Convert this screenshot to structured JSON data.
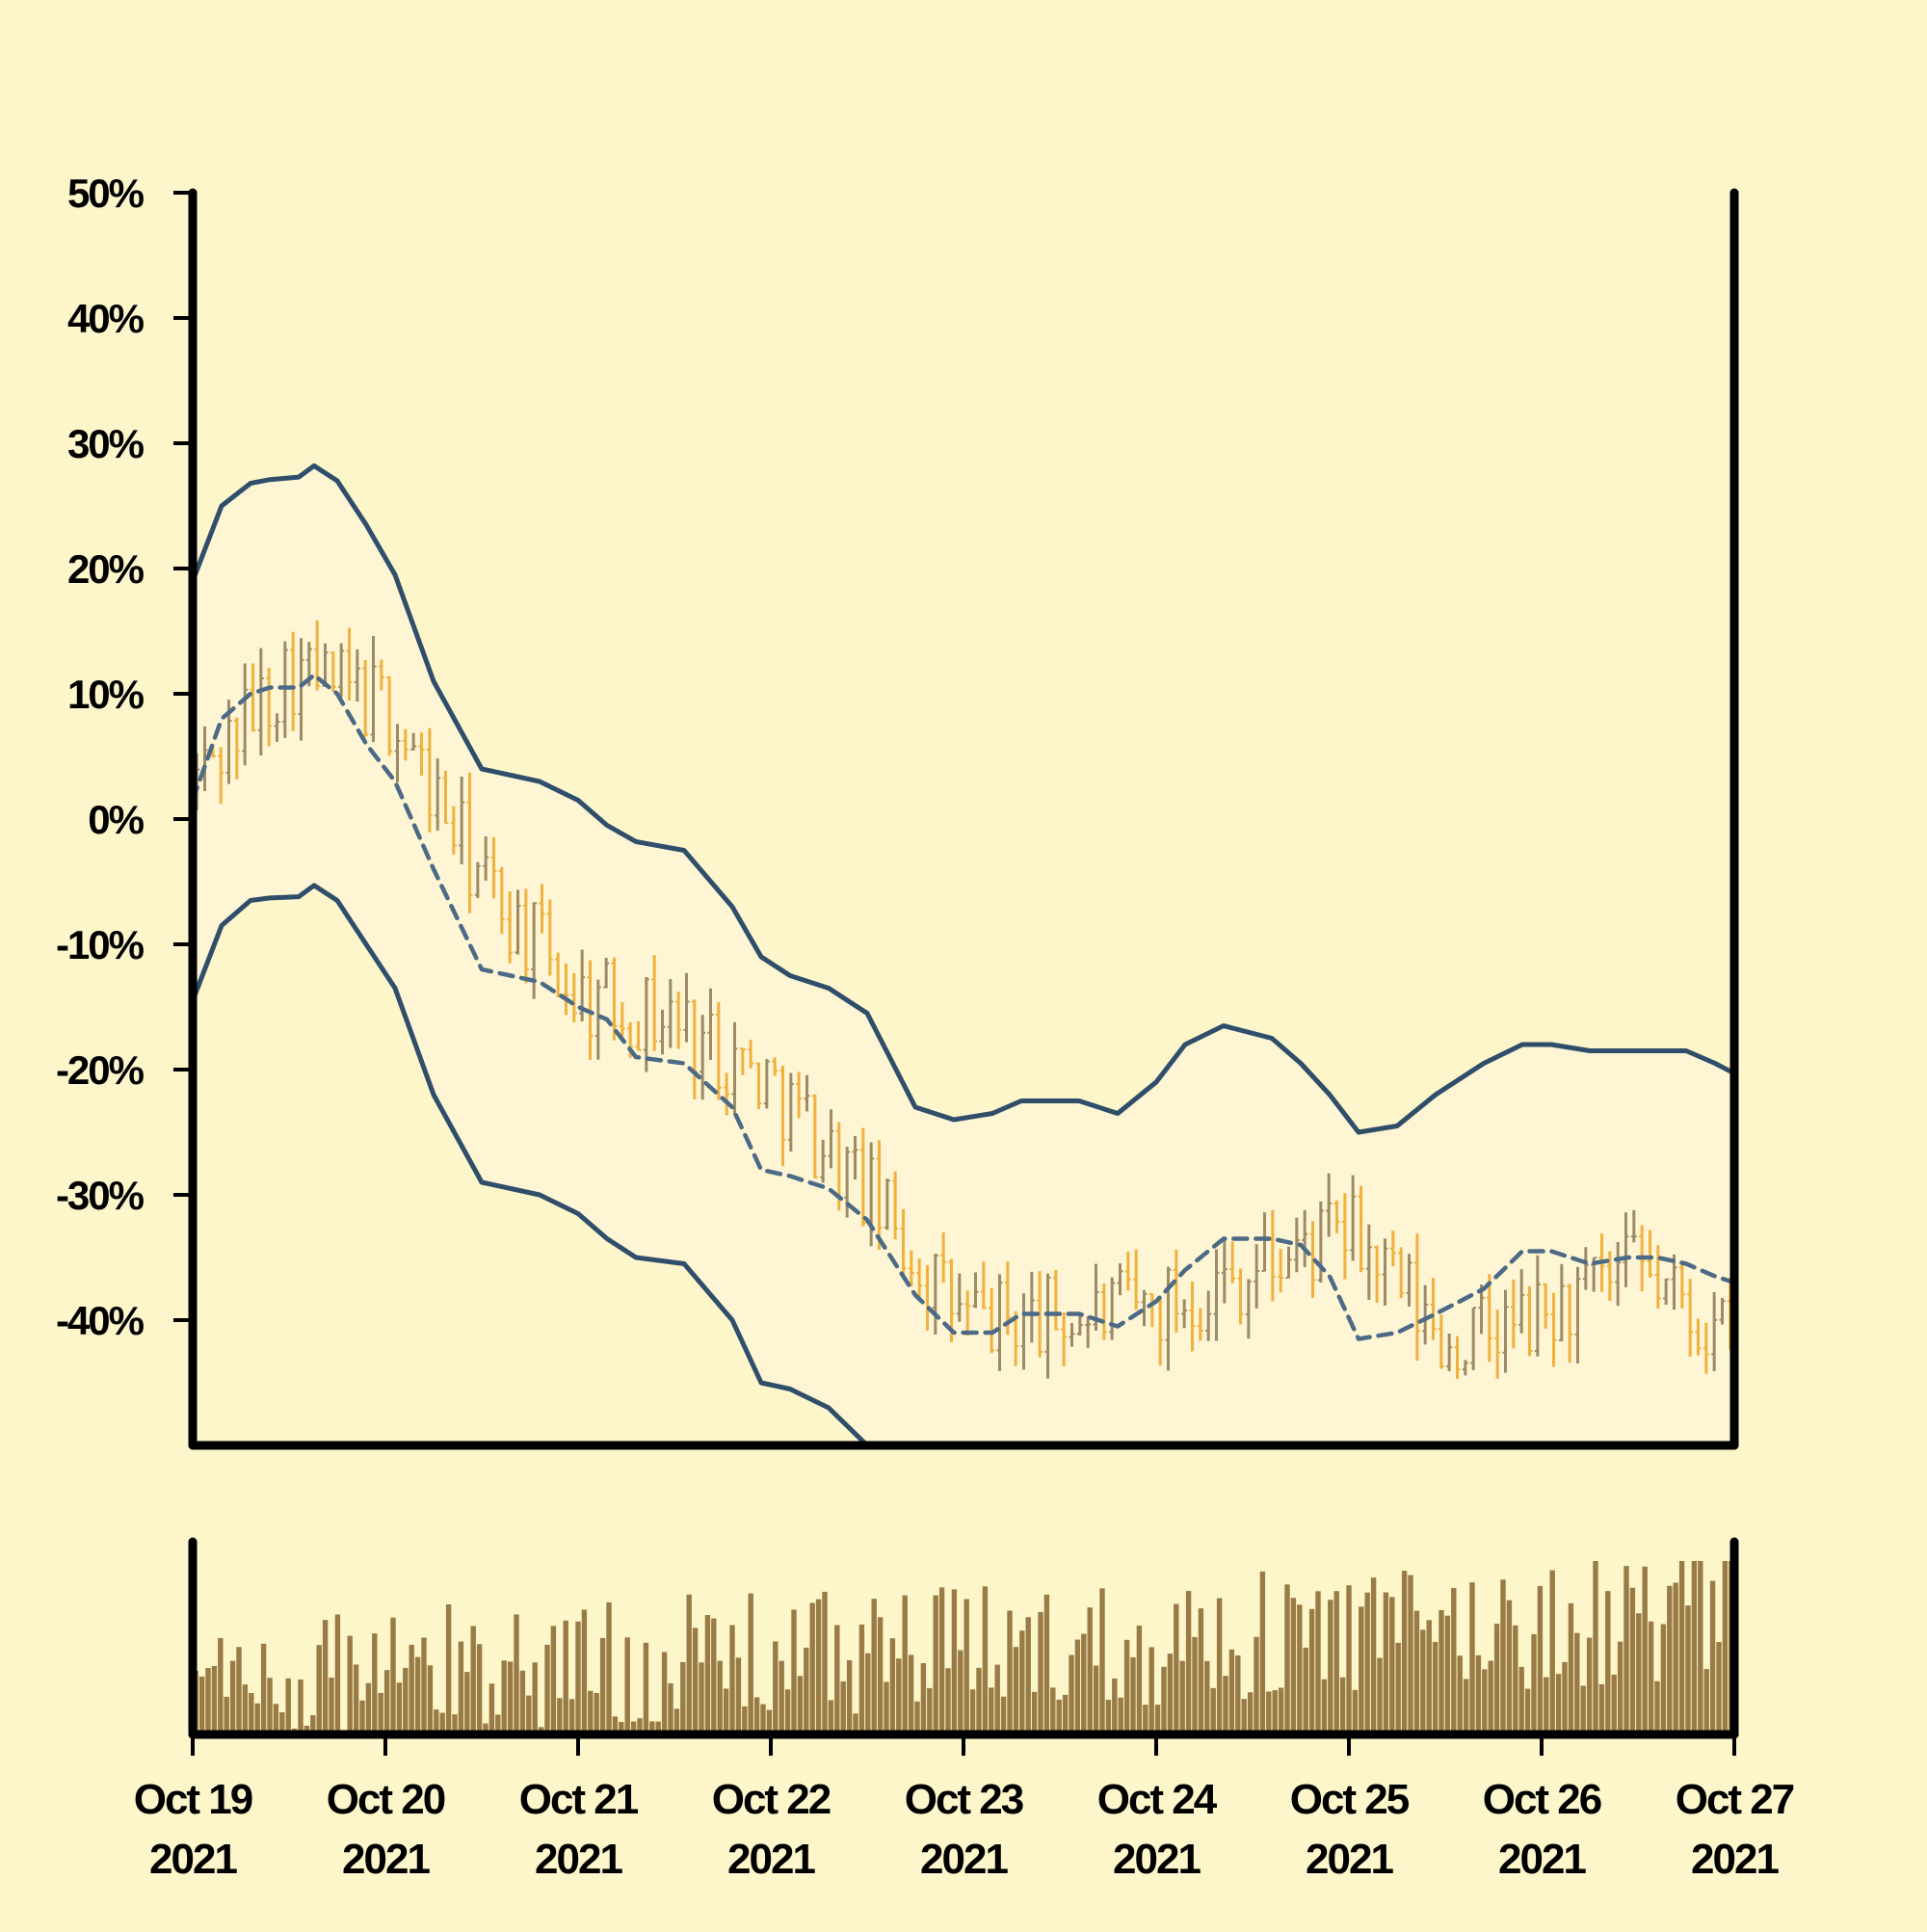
{
  "chart_data": {
    "type": "ohlc",
    "title": "",
    "xlabel": "",
    "ylabel": "",
    "x_range": [
      "2021-10-19",
      "2021-10-27"
    ],
    "ylim": [
      -50,
      50
    ],
    "y_tick_labels": [
      "50%",
      "40%",
      "30%",
      "20%",
      "10%",
      "0%",
      "-10%",
      "-20%",
      "-30%",
      "-40%"
    ],
    "y_tick_values": [
      50,
      40,
      30,
      20,
      10,
      0,
      -10,
      -20,
      -30,
      -40
    ],
    "x_tick_labels": [
      {
        "date": "2021-10-19",
        "line1": "Oct 19",
        "line2": "2021"
      },
      {
        "date": "2021-10-20",
        "line1": "Oct 20",
        "line2": "2021"
      },
      {
        "date": "2021-10-21",
        "line1": "Oct 21",
        "line2": "2021"
      },
      {
        "date": "2021-10-22",
        "line1": "Oct 22",
        "line2": "2021"
      },
      {
        "date": "2021-10-23",
        "line1": "Oct 23",
        "line2": "2021"
      },
      {
        "date": "2021-10-24",
        "line1": "Oct 24",
        "line2": "2021"
      },
      {
        "date": "2021-10-25",
        "line1": "Oct 25",
        "line2": "2021"
      },
      {
        "date": "2021-10-26",
        "line1": "Oct 26",
        "line2": "2021"
      },
      {
        "date": "2021-10-27",
        "line1": "Oct 27",
        "line2": "2021"
      }
    ],
    "price_series": {
      "x_days": [
        0,
        0.5,
        1,
        1.5,
        2,
        2.5,
        3,
        3.5,
        4,
        4.5,
        5,
        5.5,
        6,
        6.5,
        7,
        7.5,
        8
      ],
      "close_pct": [
        3,
        12,
        9,
        -5,
        -14,
        -16,
        -21,
        -30,
        -40,
        -40,
        -39,
        -36,
        -33,
        -42,
        -40,
        -36,
        -42
      ]
    },
    "moving_average": {
      "name": "",
      "style": "dashed",
      "x_days": [
        0,
        0.15,
        0.3,
        0.4,
        0.55,
        0.63,
        0.75,
        0.9,
        1.05,
        1.25,
        1.5,
        1.8,
        2.0,
        2.15,
        2.3,
        2.55,
        2.8,
        2.95,
        3.1,
        3.3,
        3.5,
        3.75,
        3.95,
        4.15,
        4.3,
        4.45,
        4.6,
        4.8,
        5.0,
        5.15,
        5.35,
        5.6,
        5.75,
        5.9,
        6.05,
        6.25,
        6.45,
        6.7,
        6.9,
        7.05,
        7.25,
        7.45,
        7.6,
        7.75,
        7.9,
        8.0
      ],
      "values": [
        1.5,
        8,
        10,
        10.5,
        10.5,
        11.5,
        10,
        6,
        3,
        -4,
        -12,
        -13,
        -15,
        -16,
        -19,
        -19.5,
        -23,
        -28,
        -28.5,
        -29.5,
        -32,
        -38,
        -41,
        -41,
        -39.5,
        -39.5,
        -39.5,
        -40.5,
        -38.5,
        -36,
        -33.5,
        -33.5,
        -34,
        -36.5,
        -41.5,
        -41,
        -39.5,
        -37.5,
        -34.5,
        -34.5,
        -35.5,
        -35,
        -35,
        -35.5,
        -36.5,
        -37
      ]
    },
    "upper_band": {
      "name": "",
      "x_days": [
        0,
        0.15,
        0.3,
        0.4,
        0.55,
        0.63,
        0.75,
        0.9,
        1.05,
        1.25,
        1.5,
        1.8,
        2.0,
        2.15,
        2.3,
        2.55,
        2.8,
        2.95,
        3.1,
        3.3,
        3.5,
        3.75,
        3.95,
        4.15,
        4.3,
        4.45,
        4.6,
        4.8,
        5.0,
        5.15,
        5.35,
        5.6,
        5.75,
        5.9,
        6.05,
        6.25,
        6.45,
        6.7,
        6.9,
        7.05,
        7.25,
        7.45,
        7.6,
        7.75,
        7.9,
        8.0
      ],
      "values": [
        19,
        25,
        26.8,
        27.1,
        27.3,
        28.2,
        27,
        23.5,
        19.5,
        11,
        4,
        3,
        1.5,
        -0.5,
        -1.8,
        -2.5,
        -7,
        -11,
        -12.5,
        -13.5,
        -15.5,
        -23,
        -24,
        -23.5,
        -22.5,
        -22.5,
        -22.5,
        -23.5,
        -21,
        -18,
        -16.5,
        -17.5,
        -19.5,
        -22,
        -25,
        -24.5,
        -22,
        -19.5,
        -18,
        -18,
        -18.5,
        -18.5,
        -18.5,
        -18.5,
        -19.5,
        -20.3
      ]
    },
    "lower_band": {
      "name": "",
      "x_days": [
        0,
        0.15,
        0.3,
        0.4,
        0.55,
        0.63,
        0.75,
        0.9,
        1.05,
        1.25,
        1.5,
        1.8,
        2.0,
        2.15,
        2.3,
        2.55,
        2.8,
        2.95,
        3.1,
        3.3,
        3.5,
        3.75,
        3.95
      ],
      "values": [
        -14.5,
        -8.5,
        -6.5,
        -6.3,
        -6.2,
        -5.3,
        -6.5,
        -10,
        -13.5,
        -22,
        -29,
        -30,
        -31.5,
        -33.5,
        -35,
        -35.5,
        -40,
        -45,
        -45.5,
        -47,
        -50,
        -56,
        -59
      ]
    },
    "volume": {
      "label": "",
      "x_range": [
        "2021-10-19",
        "2021-10-27"
      ],
      "note_scale": "relative 0-1"
    },
    "colors": {
      "background": "#fef6cb",
      "plot_fill": "#fdf5d4",
      "band_line": "#2f4e6a",
      "moving_average": "#4c6a85",
      "ohlc_up": "#9e8a64",
      "ohlc_down": "#f1b13f",
      "volume": "#987b45",
      "axis": "#000000"
    },
    "grid": false,
    "legend": "none"
  }
}
